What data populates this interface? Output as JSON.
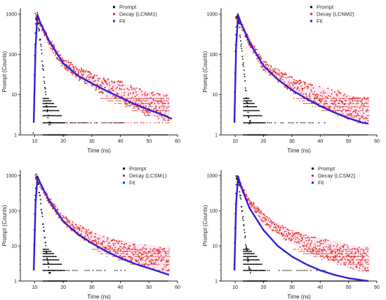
{
  "chart_data": [
    {
      "type": "scatter",
      "xlabel": "Time (ns)",
      "ylabel": "Prompt (Counts)",
      "y_scale": "log",
      "xlim": [
        5,
        60
      ],
      "ylim": [
        1,
        1000
      ],
      "x_ticks": [
        "10",
        "20",
        "30",
        "40",
        "50",
        "60"
      ],
      "y_ticks": [
        "1",
        "10",
        "100",
        "1000"
      ],
      "legend_position": "top-right",
      "series": [
        {
          "name": "Prompt",
          "color": "#000000",
          "x": [
            9.5,
            10,
            10.5,
            11,
            12,
            13,
            14,
            15
          ],
          "y": [
            1,
            120,
            900,
            900,
            200,
            40,
            8,
            2
          ]
        },
        {
          "name": "Decay (LCNM1)",
          "color": "#e8241c",
          "x": [
            10.5,
            12,
            15,
            20,
            25,
            30,
            35,
            40,
            45,
            50,
            55
          ],
          "y": [
            900,
            550,
            210,
            60,
            35,
            22,
            15,
            12,
            8,
            6,
            5
          ]
        },
        {
          "name": "Fit",
          "color": "#2f1fd6",
          "x": [
            9.7,
            10.3,
            11,
            12,
            15,
            20,
            25,
            30,
            35,
            40,
            45,
            50,
            55,
            58
          ],
          "y": [
            2,
            150,
            950,
            600,
            220,
            60,
            30,
            19,
            12.5,
            8.5,
            5.8,
            4.2,
            3.1,
            2.5
          ]
        }
      ]
    },
    {
      "type": "scatter",
      "xlabel": "Time (ns)",
      "ylabel": "Prompt (Counts)",
      "y_scale": "log",
      "xlim": [
        5,
        60
      ],
      "ylim": [
        1,
        1000
      ],
      "x_ticks": [
        "10",
        "20",
        "30",
        "40",
        "50",
        "60"
      ],
      "y_ticks": [
        "1",
        "10",
        "100",
        "1000"
      ],
      "legend_position": "top-right",
      "series": [
        {
          "name": "Prompt",
          "color": "#000000",
          "x": [
            9.5,
            10,
            10.5,
            11,
            12,
            13,
            14,
            15
          ],
          "y": [
            1,
            120,
            900,
            900,
            200,
            40,
            8,
            2
          ]
        },
        {
          "name": "Decay (LCNM2)",
          "color": "#e8241c",
          "x": [
            10.5,
            12,
            15,
            20,
            25,
            30,
            35,
            40,
            45,
            50,
            55
          ],
          "y": [
            900,
            550,
            200,
            55,
            30,
            18,
            12,
            9,
            7,
            5,
            4
          ]
        },
        {
          "name": "Fit",
          "color": "#2f1fd6",
          "x": [
            9.7,
            10.3,
            11,
            12,
            15,
            20,
            25,
            30,
            35,
            40,
            45,
            50,
            55,
            57
          ],
          "y": [
            2,
            150,
            950,
            600,
            200,
            52,
            24,
            13,
            8,
            5.2,
            3.6,
            2.6,
            2.0,
            1.9
          ]
        }
      ]
    },
    {
      "type": "scatter",
      "xlabel": "Time (ns)",
      "ylabel": "Prompt (Counts)",
      "y_scale": "log",
      "xlim": [
        5,
        60
      ],
      "ylim": [
        1,
        1000
      ],
      "x_ticks": [
        "10",
        "20",
        "30",
        "40",
        "50",
        "60"
      ],
      "y_ticks": [
        "1",
        "10",
        "100",
        "1000"
      ],
      "legend_position": "top-right",
      "series": [
        {
          "name": "Prompt",
          "color": "#000000",
          "x": [
            9.5,
            10,
            10.5,
            11,
            12,
            13,
            14,
            15
          ],
          "y": [
            1,
            120,
            900,
            900,
            200,
            40,
            8,
            2
          ]
        },
        {
          "name": "Decay (LCSM1)",
          "color": "#e8241c",
          "x": [
            10.5,
            12,
            15,
            20,
            25,
            30,
            35,
            40,
            45,
            50,
            55
          ],
          "y": [
            900,
            550,
            200,
            55,
            28,
            17,
            11,
            8,
            6,
            5,
            4
          ]
        },
        {
          "name": "Fit",
          "color": "#2f1fd6",
          "x": [
            9.7,
            10.3,
            11,
            12,
            15,
            20,
            25,
            30,
            35,
            40,
            45,
            50,
            55,
            57
          ],
          "y": [
            2,
            150,
            950,
            600,
            200,
            50,
            22,
            12,
            7,
            4.5,
            3.1,
            2.3,
            1.7,
            1.5
          ]
        }
      ]
    },
    {
      "type": "scatter",
      "xlabel": "Time (ns)",
      "ylabel": "Prompt (Counts)",
      "y_scale": "log",
      "xlim": [
        5,
        60
      ],
      "ylim": [
        1,
        1000
      ],
      "x_ticks": [
        "10",
        "20",
        "30",
        "40",
        "50",
        "60"
      ],
      "y_ticks": [
        "1",
        "10",
        "100",
        "1000"
      ],
      "legend_position": "top-right",
      "series": [
        {
          "name": "Prompt",
          "color": "#000000",
          "x": [
            9.5,
            10,
            10.5,
            11,
            12,
            13,
            14,
            15
          ],
          "y": [
            1,
            120,
            900,
            900,
            200,
            40,
            8,
            2
          ]
        },
        {
          "name": "Decay (LCSM2)",
          "color": "#e8241c",
          "x": [
            10.5,
            12,
            15,
            20,
            25,
            30,
            35,
            40,
            45,
            50,
            55
          ],
          "y": [
            900,
            500,
            180,
            60,
            30,
            18,
            12,
            9,
            7,
            5,
            4
          ]
        },
        {
          "name": "Fit",
          "color": "#2f1fd6",
          "x": [
            9.7,
            10.3,
            11,
            12,
            15,
            20,
            25,
            30,
            35,
            40,
            45,
            50,
            55,
            57
          ],
          "y": [
            2,
            150,
            950,
            500,
            120,
            28,
            10,
            5,
            3,
            2,
            1.5,
            1.2,
            1.05,
            1.0
          ]
        }
      ]
    }
  ]
}
